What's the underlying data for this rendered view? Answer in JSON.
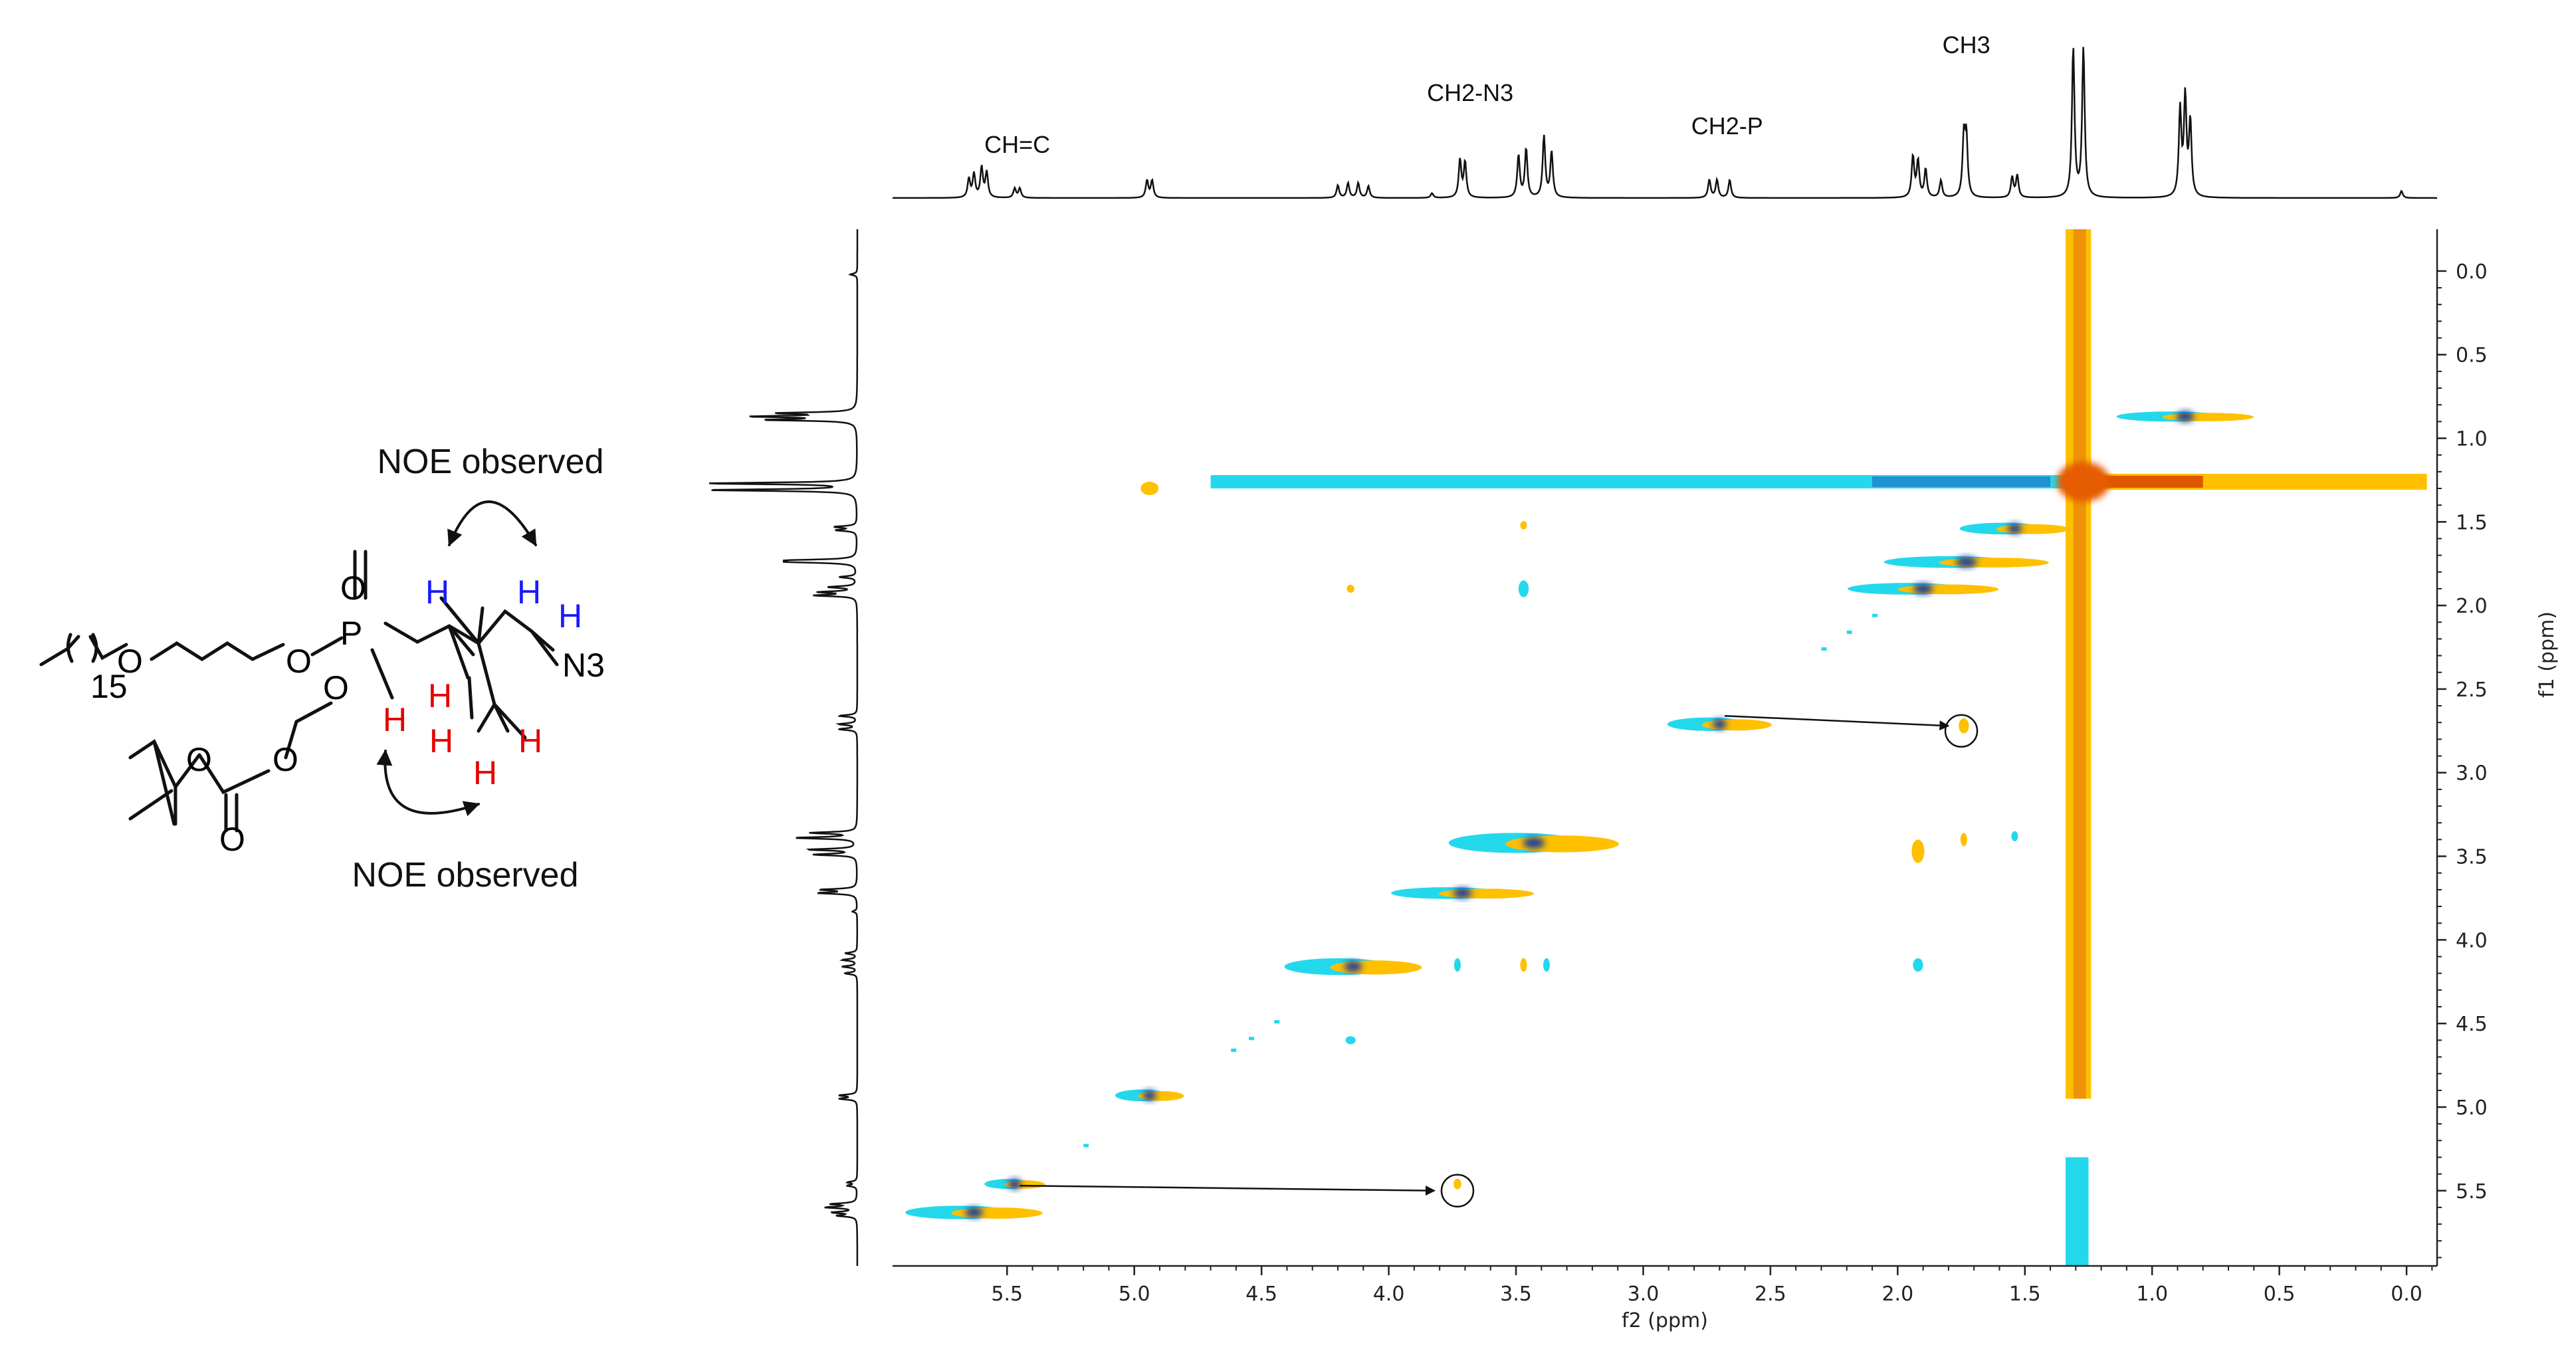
{
  "chart_data": {
    "type": "heatmap",
    "subtype": "2D NOESY NMR spectrum",
    "x": {
      "label": "f2 (ppm)",
      "range": [
        5.95,
        -0.12
      ],
      "ticks": [
        5.5,
        5.0,
        4.5,
        4.0,
        3.5,
        3.0,
        2.5,
        2.0,
        1.5,
        1.0,
        0.5,
        0.0
      ]
    },
    "y": {
      "label": "f1 (ppm)",
      "range": [
        -0.25,
        5.95
      ],
      "ticks": [
        0.0,
        0.5,
        1.0,
        1.5,
        2.0,
        2.5,
        3.0,
        3.5,
        4.0,
        4.5,
        5.0,
        5.5
      ]
    },
    "tick_labels_x": [
      "5.5",
      "5.0",
      "4.5",
      "4.0",
      "3.5",
      "3.0",
      "2.5",
      "2.0",
      "1.5",
      "1.0",
      "0.5",
      "0.0"
    ],
    "tick_labels_y": [
      "0.0",
      "0.5",
      "1.0",
      "1.5",
      "2.0",
      "2.5",
      "3.0",
      "3.5",
      "4.0",
      "4.5",
      "5.0",
      "5.5"
    ],
    "projection_peaks": [
      {
        "ppm": 5.63,
        "h": 0.3
      },
      {
        "ppm": 5.6,
        "h": 0.38
      },
      {
        "ppm": 5.58,
        "h": 0.32
      },
      {
        "ppm": 5.65,
        "h": 0.24
      },
      {
        "ppm": 5.47,
        "h": 0.12
      },
      {
        "ppm": 5.45,
        "h": 0.12
      },
      {
        "ppm": 4.95,
        "h": 0.22
      },
      {
        "ppm": 4.93,
        "h": 0.22
      },
      {
        "ppm": 4.2,
        "h": 0.16
      },
      {
        "ppm": 4.16,
        "h": 0.19
      },
      {
        "ppm": 4.12,
        "h": 0.19
      },
      {
        "ppm": 4.08,
        "h": 0.15
      },
      {
        "ppm": 3.83,
        "h": 0.06
      },
      {
        "ppm": 3.72,
        "h": 0.48
      },
      {
        "ppm": 3.7,
        "h": 0.45
      },
      {
        "ppm": 3.49,
        "h": 0.54
      },
      {
        "ppm": 3.46,
        "h": 0.62
      },
      {
        "ppm": 3.39,
        "h": 0.78
      },
      {
        "ppm": 3.36,
        "h": 0.58
      },
      {
        "ppm": 2.74,
        "h": 0.23
      },
      {
        "ppm": 2.71,
        "h": 0.23
      },
      {
        "ppm": 2.66,
        "h": 0.23
      },
      {
        "ppm": 1.94,
        "h": 0.52
      },
      {
        "ppm": 1.92,
        "h": 0.46
      },
      {
        "ppm": 1.89,
        "h": 0.36
      },
      {
        "ppm": 1.83,
        "h": 0.22
      },
      {
        "ppm": 1.74,
        "h": 0.74
      },
      {
        "ppm": 1.73,
        "h": 0.74
      },
      {
        "ppm": 1.55,
        "h": 0.26
      },
      {
        "ppm": 1.53,
        "h": 0.28
      },
      {
        "ppm": 1.31,
        "h": 1.9
      },
      {
        "ppm": 1.27,
        "h": 1.9
      },
      {
        "ppm": 0.89,
        "h": 1.1
      },
      {
        "ppm": 0.87,
        "h": 1.25
      },
      {
        "ppm": 0.85,
        "h": 0.95
      },
      {
        "ppm": 0.02,
        "h": 0.09
      }
    ],
    "peak_labels": [
      {
        "text": "CH=C",
        "ppm": 5.46
      },
      {
        "text": "CH2-N3",
        "ppm": 3.68
      },
      {
        "text": "CH2-P",
        "ppm": 2.67
      },
      {
        "text": "CH3",
        "ppm": 1.73
      }
    ],
    "cross_peaks": [
      {
        "f2": 5.63,
        "f1": 5.63,
        "kind": "diagonal",
        "w": 0.5,
        "h": 0.08
      },
      {
        "f2": 5.47,
        "f1": 5.46,
        "kind": "diagonal",
        "w": 0.22,
        "h": 0.06
      },
      {
        "f2": 4.94,
        "f1": 4.93,
        "kind": "diagonal",
        "w": 0.25,
        "h": 0.07
      },
      {
        "f2": 4.14,
        "f1": 4.16,
        "kind": "diagonal",
        "w": 0.5,
        "h": 0.1
      },
      {
        "f2": 3.71,
        "f1": 3.72,
        "kind": "diagonal",
        "w": 0.52,
        "h": 0.07
      },
      {
        "f2": 3.43,
        "f1": 3.42,
        "kind": "diagonal",
        "w": 0.62,
        "h": 0.12
      },
      {
        "f2": 2.7,
        "f1": 2.71,
        "kind": "diagonal",
        "w": 0.38,
        "h": 0.08
      },
      {
        "f2": 1.9,
        "f1": 1.9,
        "kind": "diagonal",
        "w": 0.55,
        "h": 0.07
      },
      {
        "f2": 1.73,
        "f1": 1.74,
        "kind": "diagonal",
        "w": 0.6,
        "h": 0.07
      },
      {
        "f2": 1.54,
        "f1": 1.54,
        "kind": "diagonal",
        "w": 0.4,
        "h": 0.07
      },
      {
        "f2": 0.87,
        "f1": 0.87,
        "kind": "diagonal",
        "w": 0.5,
        "h": 0.06
      },
      {
        "f2": 3.73,
        "f1": 5.46,
        "kind": "noe",
        "w": 0.03,
        "h": 0.05
      },
      {
        "f2": 1.74,
        "f1": 2.72,
        "kind": "noe",
        "w": 0.04,
        "h": 0.09
      },
      {
        "f2": 4.94,
        "f1": 1.3,
        "kind": "cross",
        "w": 0.07,
        "h": 0.08
      },
      {
        "f2": 3.47,
        "f1": 1.9,
        "kind": "cross",
        "w": 0.04,
        "h": 0.1
      },
      {
        "f2": 4.15,
        "f1": 1.9,
        "kind": "cross",
        "w": 0.03,
        "h": 0.04
      },
      {
        "f2": 3.73,
        "f1": 4.15,
        "kind": "cross",
        "w": 0.02,
        "h": 0.08
      },
      {
        "f2": 3.47,
        "f1": 4.15,
        "kind": "cross",
        "w": 0.02,
        "h": 0.08
      },
      {
        "f2": 3.38,
        "f1": 4.15,
        "kind": "cross",
        "w": 0.02,
        "h": 0.08
      },
      {
        "f2": 1.92,
        "f1": 3.47,
        "kind": "cross",
        "w": 0.05,
        "h": 0.14
      },
      {
        "f2": 1.92,
        "f1": 4.15,
        "kind": "cross",
        "w": 0.04,
        "h": 0.08
      },
      {
        "f2": 1.74,
        "f1": 3.4,
        "kind": "cross",
        "w": 0.02,
        "h": 0.08
      },
      {
        "f2": 1.54,
        "f1": 3.38,
        "kind": "cross",
        "w": 0.02,
        "h": 0.06
      },
      {
        "f2": 3.47,
        "f1": 1.52,
        "kind": "cross",
        "w": 0.02,
        "h": 0.05
      },
      {
        "f2": 4.15,
        "f1": 4.6,
        "kind": "cross",
        "w": 0.04,
        "h": 0.04
      }
    ],
    "annotations": [
      {
        "from": [
          5.45,
          5.47
        ],
        "to": [
          3.82,
          5.5
        ]
      },
      {
        "from": [
          2.68,
          2.66
        ],
        "to": [
          1.8,
          2.72
        ]
      }
    ],
    "circles": [
      {
        "f2": 3.73,
        "f1": 5.5
      },
      {
        "f2": 1.75,
        "f1": 2.75
      }
    ],
    "colors": {
      "positive": "#ffc000",
      "positive_core": "#e65c00",
      "negative": "#24d8ec",
      "negative_core": "#1a3f9c",
      "trace": "#111111"
    }
  },
  "molecule": {
    "labels": {
      "chain_count": "15",
      "o_ether": "O",
      "o_phosphonate": "O",
      "o_double": "O",
      "p": "P",
      "o_ester": "O",
      "o_methylene": "O",
      "o_carbonate": "O",
      "o_carbonyl": "O",
      "azide": "N3",
      "h_blue_1": "H",
      "h_blue_2": "H",
      "h_blue_3": "H",
      "h_red_1": "H",
      "h_red_2": "H",
      "h_red_3": "H",
      "h_red_4": "H",
      "h_red_5": "H"
    },
    "noe_label_top": "NOE observed",
    "noe_label_bottom": "NOE observed",
    "colors": {
      "blue": "#1a1aff",
      "red": "#e60000"
    }
  }
}
